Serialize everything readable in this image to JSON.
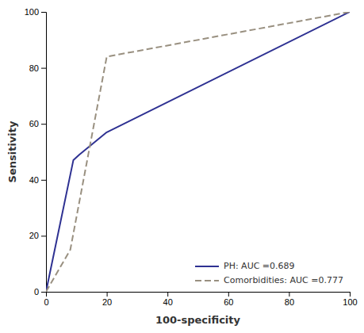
{
  "chart_data": {
    "type": "line",
    "x_label": "100-specificity",
    "y_label": "Sensitivity",
    "series": [
      {
        "name": "PH: AUC =0.689",
        "color": "#2e3192",
        "line_style": "solid",
        "x": [
          0,
          9,
          11,
          20,
          100
        ],
        "values": [
          0,
          47,
          49,
          57,
          100
        ]
      },
      {
        "name": "Comorbidities: AUC =0.777",
        "color": "#999080",
        "line_style": "dashed",
        "x": [
          0,
          8,
          20,
          100
        ],
        "values": [
          0,
          15,
          84,
          100
        ]
      }
    ],
    "xlim": [
      0,
      100
    ],
    "ylim": [
      0,
      100
    ],
    "xticks": [
      0,
      20,
      40,
      60,
      80,
      100
    ],
    "yticks": [
      0,
      20,
      40,
      60,
      80,
      100
    ],
    "grid": false,
    "legend": "lower right"
  }
}
